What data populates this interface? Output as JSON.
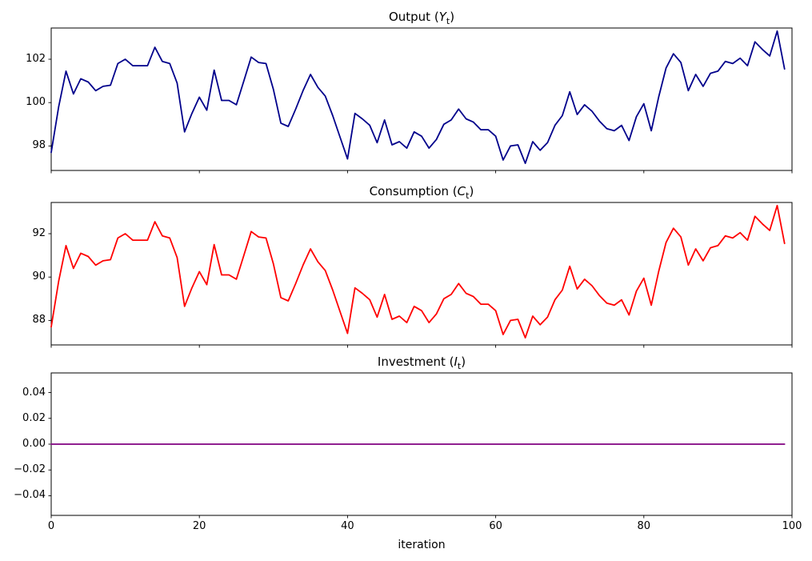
{
  "chart_data": {
    "type": "line",
    "xlabel": "iteration",
    "x_range": [
      0,
      100
    ],
    "x_ticks": [
      0,
      20,
      40,
      60,
      80,
      100
    ],
    "x_tick_labels": [
      "0",
      "20",
      "40",
      "60",
      "80",
      "100"
    ],
    "grid": false,
    "legend": "none",
    "subplots": [
      {
        "title": {
          "pre": "Output (",
          "var": "Y",
          "sub": "t",
          "post": ")"
        },
        "line_color": "#00008B",
        "ylim": [
          96.87,
          103.44
        ],
        "yticks": [
          98,
          100,
          102
        ],
        "ytick_labels": [
          "98",
          "100",
          "102"
        ],
        "x": "0..99 step 1",
        "values": [
          97.7,
          99.8,
          101.45,
          100.4,
          101.1,
          100.95,
          100.55,
          100.75,
          100.8,
          101.8,
          102.0,
          101.7,
          101.7,
          101.7,
          102.55,
          101.9,
          101.8,
          100.9,
          98.65,
          99.5,
          100.25,
          99.65,
          101.5,
          100.1,
          100.1,
          99.9,
          101.0,
          102.1,
          101.85,
          101.8,
          100.6,
          99.05,
          98.9,
          99.7,
          100.55,
          101.3,
          100.7,
          100.3,
          99.4,
          98.4,
          97.4,
          99.5,
          99.25,
          98.95,
          98.15,
          99.2,
          98.05,
          98.2,
          97.9,
          98.65,
          98.45,
          97.9,
          98.3,
          99.0,
          99.2,
          99.7,
          99.25,
          99.1,
          98.75,
          98.75,
          98.45,
          97.35,
          98.0,
          98.05,
          97.2,
          98.2,
          97.8,
          98.15,
          98.95,
          99.4,
          100.5,
          99.45,
          99.9,
          99.6,
          99.15,
          98.8,
          98.7,
          98.95,
          98.25,
          99.35,
          99.95,
          98.7,
          100.25,
          101.6,
          102.25,
          101.85,
          100.55,
          101.3,
          100.75,
          101.35,
          101.45,
          101.9,
          101.8,
          102.05,
          101.7,
          102.8,
          102.45,
          102.15,
          103.3,
          101.55
        ]
      },
      {
        "title": {
          "pre": "Consumption (",
          "var": "C",
          "sub": "t",
          "post": ")"
        },
        "line_color": "#FF0000",
        "ylim": [
          86.87,
          93.44
        ],
        "yticks": [
          88,
          90,
          92
        ],
        "ytick_labels": [
          "88",
          "90",
          "92"
        ],
        "x": "0..99 step 1",
        "values": [
          87.7,
          89.8,
          91.45,
          90.4,
          91.1,
          90.95,
          90.55,
          90.75,
          90.8,
          91.8,
          92.0,
          91.7,
          91.7,
          91.7,
          92.55,
          91.9,
          91.8,
          90.9,
          88.65,
          89.5,
          90.25,
          89.65,
          91.5,
          90.1,
          90.1,
          89.9,
          91.0,
          92.1,
          91.85,
          91.8,
          90.6,
          89.05,
          88.9,
          89.7,
          90.55,
          91.3,
          90.7,
          90.3,
          89.4,
          88.4,
          87.4,
          89.5,
          89.25,
          88.95,
          88.15,
          89.2,
          88.05,
          88.2,
          87.9,
          88.65,
          88.45,
          87.9,
          88.3,
          89.0,
          89.2,
          89.7,
          89.25,
          89.1,
          88.75,
          88.75,
          88.45,
          87.35,
          88.0,
          88.05,
          87.2,
          88.2,
          87.8,
          88.15,
          88.95,
          89.4,
          90.5,
          89.45,
          89.9,
          89.6,
          89.15,
          88.8,
          88.7,
          88.95,
          88.25,
          89.35,
          89.95,
          88.7,
          90.25,
          91.6,
          92.25,
          91.85,
          90.55,
          91.3,
          90.75,
          91.35,
          91.45,
          91.9,
          91.8,
          92.05,
          91.7,
          92.8,
          92.45,
          92.15,
          93.3,
          91.55
        ]
      },
      {
        "title": {
          "pre": "Investment (",
          "var": "I",
          "sub": "t",
          "post": ")"
        },
        "line_color": "#800080",
        "ylim": [
          -0.0552,
          0.0552
        ],
        "yticks": [
          0.04,
          0.02,
          0.0,
          -0.02,
          -0.04
        ],
        "ytick_labels": [
          "0.04",
          "0.02",
          "0.00",
          "−0.02",
          "−0.04"
        ],
        "x": "0..99 step 1",
        "values": [
          0,
          0,
          0,
          0,
          0,
          0,
          0,
          0,
          0,
          0,
          0,
          0,
          0,
          0,
          0,
          0,
          0,
          0,
          0,
          0,
          0,
          0,
          0,
          0,
          0,
          0,
          0,
          0,
          0,
          0,
          0,
          0,
          0,
          0,
          0,
          0,
          0,
          0,
          0,
          0,
          0,
          0,
          0,
          0,
          0,
          0,
          0,
          0,
          0,
          0,
          0,
          0,
          0,
          0,
          0,
          0,
          0,
          0,
          0,
          0,
          0,
          0,
          0,
          0,
          0,
          0,
          0,
          0,
          0,
          0,
          0,
          0,
          0,
          0,
          0,
          0,
          0,
          0,
          0,
          0,
          0,
          0,
          0,
          0,
          0,
          0,
          0,
          0,
          0,
          0,
          0,
          0,
          0,
          0,
          0,
          0,
          0,
          0,
          0,
          0
        ]
      }
    ],
    "style": {
      "background": "#ffffff",
      "spine_color": "#000000",
      "tick_color": "#000000"
    }
  }
}
